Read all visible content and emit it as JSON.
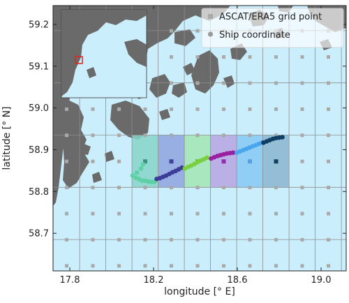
{
  "chart_data": {
    "type": "scatter",
    "title": "",
    "xlabel": "longitude [° E]",
    "ylabel": "latitude [° N]",
    "xlim": [
      17.72,
      19.12
    ],
    "ylim": [
      58.61,
      59.245
    ],
    "xticks": [
      17.8,
      18.2,
      18.6,
      19.0
    ],
    "yticks": [
      58.7,
      58.8,
      58.9,
      59.0,
      59.1,
      59.2
    ],
    "xticks_label": [
      "17.8",
      "18.2",
      "18.6",
      "19.0"
    ],
    "yticks_label": [
      "58.7",
      "58.8",
      "58.9",
      "59.0",
      "59.1",
      "59.2"
    ],
    "grid": true,
    "legend": {
      "placement": "top-right",
      "entries": [
        "ASCAT/ERA5 grid point",
        "Ship coordinate"
      ]
    },
    "colors": {
      "sea": "#cbeefc",
      "land": "#6a6a6a",
      "grid_point": "#a9a9a9",
      "inset_marker": "#e0241c"
    },
    "grid_points": {
      "lon_start": 17.785,
      "lon_step": 0.125,
      "lon_count": 11,
      "lat_start": 58.622,
      "lat_step": 0.0625,
      "lat_count": 10
    },
    "grid_lines": {
      "lon": [
        17.847,
        17.972,
        18.097,
        18.222,
        18.347,
        18.472,
        18.597,
        18.722,
        18.847,
        18.972,
        19.097
      ],
      "lat": [
        58.685,
        58.81,
        58.935,
        59.06,
        59.185
      ]
    },
    "cells": [
      {
        "lon": [
          18.097,
          18.222
        ],
        "lat": [
          58.81,
          58.935
        ],
        "color": "#86d3c8",
        "center": [
          18.16,
          58.872
        ]
      },
      {
        "lon": [
          18.222,
          18.347
        ],
        "lat": [
          58.81,
          58.935
        ],
        "color": "#8fa3df",
        "center": [
          18.285,
          58.872
        ]
      },
      {
        "lon": [
          18.347,
          18.472
        ],
        "lat": [
          58.81,
          58.935
        ],
        "color": "#a3e6b4",
        "center": [
          18.41,
          58.872
        ]
      },
      {
        "lon": [
          18.472,
          18.597
        ],
        "lat": [
          58.81,
          58.935
        ],
        "color": "#b8a4e2",
        "center": [
          18.535,
          58.872
        ]
      },
      {
        "lon": [
          18.597,
          18.722
        ],
        "lat": [
          58.81,
          58.935
        ],
        "color": "#86c8f4",
        "center": [
          18.66,
          58.872
        ]
      },
      {
        "lon": [
          18.722,
          18.847
        ],
        "lat": [
          58.81,
          58.935
        ],
        "color": "#8bb5cf",
        "center": [
          18.785,
          58.872
        ]
      }
    ],
    "center_colors": [
      "#3a8f86",
      "#41429b",
      "#65b84e",
      "#8d2fb0",
      "#5a9fe0",
      "#12405e"
    ],
    "ship_track": [
      {
        "color": "#5fcfa6",
        "points": [
          [
            18.1,
            58.838
          ],
          [
            18.115,
            58.833
          ],
          [
            18.13,
            58.83
          ],
          [
            18.145,
            58.826
          ],
          [
            18.16,
            58.826
          ],
          [
            18.175,
            58.824
          ],
          [
            18.19,
            58.823
          ],
          [
            18.205,
            58.823
          ],
          [
            18.12,
            58.845
          ],
          [
            18.14,
            58.855
          ],
          [
            18.15,
            58.865
          ]
        ]
      },
      {
        "color": "#3c3d96",
        "points": [
          [
            18.215,
            58.83
          ],
          [
            18.23,
            58.832
          ],
          [
            18.245,
            58.835
          ],
          [
            18.26,
            58.838
          ],
          [
            18.275,
            58.842
          ],
          [
            18.29,
            58.846
          ],
          [
            18.305,
            58.849
          ],
          [
            18.32,
            58.853
          ],
          [
            18.335,
            58.857
          ]
        ]
      },
      {
        "color": "#79cf3e",
        "points": [
          [
            18.35,
            58.855
          ],
          [
            18.365,
            58.859
          ],
          [
            18.38,
            58.862
          ],
          [
            18.395,
            58.866
          ],
          [
            18.41,
            58.87
          ],
          [
            18.425,
            58.874
          ],
          [
            18.44,
            58.877
          ],
          [
            18.455,
            58.881
          ]
        ]
      },
      {
        "color": "#9a1fa0",
        "points": [
          [
            18.475,
            58.879
          ],
          [
            18.49,
            58.882
          ],
          [
            18.505,
            58.885
          ],
          [
            18.52,
            58.887
          ],
          [
            18.535,
            58.889
          ],
          [
            18.55,
            58.891
          ],
          [
            18.565,
            58.892
          ],
          [
            18.58,
            58.893
          ]
        ]
      },
      {
        "color": "#4aa6ec",
        "points": [
          [
            18.598,
            58.893
          ],
          [
            18.613,
            58.896
          ],
          [
            18.628,
            58.899
          ],
          [
            18.643,
            58.902
          ],
          [
            18.658,
            58.905
          ],
          [
            18.673,
            58.908
          ],
          [
            18.688,
            58.911
          ],
          [
            18.703,
            58.914
          ],
          [
            18.718,
            58.917
          ]
        ]
      },
      {
        "color": "#0f3d63",
        "points": [
          [
            18.725,
            58.917
          ],
          [
            18.74,
            58.92
          ],
          [
            18.755,
            58.923
          ],
          [
            18.77,
            58.926
          ],
          [
            18.785,
            58.928
          ],
          [
            18.8,
            58.929
          ],
          [
            18.815,
            58.93
          ]
        ]
      }
    ]
  }
}
